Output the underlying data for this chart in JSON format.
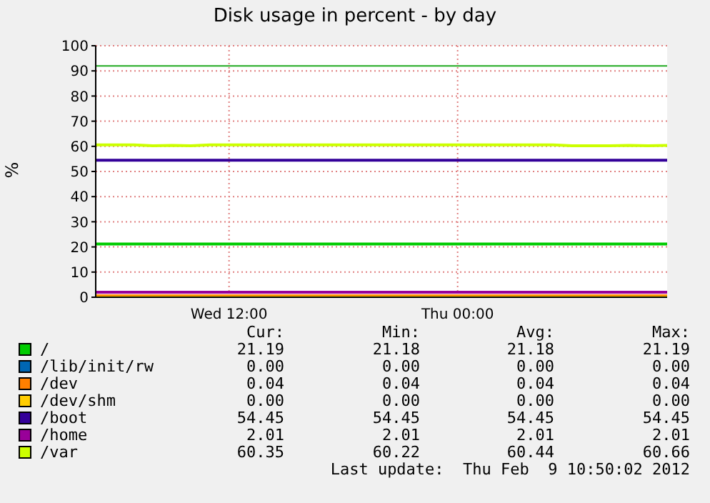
{
  "chart_data": {
    "type": "line",
    "title": "Disk usage in percent - by day",
    "ylabel": "%",
    "categories": [
      null,
      null,
      null,
      null,
      null,
      null,
      null,
      "Wed 12:00",
      null,
      null,
      null,
      null,
      null,
      null,
      null,
      null,
      null,
      null,
      null,
      "Thu 00:00",
      null,
      null,
      null,
      null,
      null,
      null,
      null,
      null,
      null,
      null,
      null
    ],
    "ylim": [
      0,
      100
    ],
    "yticks": [
      0,
      10,
      20,
      30,
      40,
      50,
      60,
      70,
      80,
      90,
      100
    ],
    "grid": true,
    "legend": "bottom",
    "ref_lines": [
      {
        "axis": "y",
        "value": 92,
        "color": "#22aa22"
      }
    ],
    "series": [
      {
        "name": "/",
        "color": "#00cc00",
        "values": [
          21.2,
          21.2,
          21.2,
          21.2,
          21.2,
          21.2,
          21.2,
          21.2,
          21.2,
          21.2,
          21.2,
          21.2,
          21.2,
          21.2,
          21.2,
          21.2,
          21.2,
          21.2,
          21.2,
          21.2,
          21.2,
          21.2,
          21.2,
          21.2,
          21.2,
          21.2,
          21.2,
          21.2,
          21.2,
          21.2,
          21.2
        ]
      },
      {
        "name": "/lib/init/rw",
        "color": "#0066b3",
        "values": [
          null,
          null,
          null,
          null,
          null,
          null,
          null,
          null,
          null,
          null,
          null,
          null,
          null,
          null,
          null,
          null,
          null,
          null,
          null,
          null,
          null,
          null,
          null,
          null,
          null,
          null,
          null,
          null,
          null,
          null,
          null
        ]
      },
      {
        "name": "/dev",
        "color": "#ff8000",
        "values": [
          0,
          0,
          0,
          0,
          0,
          0,
          0,
          0,
          0,
          0,
          0,
          0,
          0,
          0,
          0,
          0,
          0,
          0,
          0,
          0,
          0,
          0,
          0,
          0,
          0,
          0,
          0,
          0,
          0,
          0,
          0
        ]
      },
      {
        "name": "/dev/shm",
        "color": "#ffcc00",
        "values": [
          0,
          0,
          0,
          0,
          0,
          0,
          0,
          0,
          0,
          0,
          0,
          0,
          0,
          0,
          0,
          0,
          0,
          0,
          0,
          0,
          0,
          0,
          0,
          0,
          0,
          0,
          0,
          0,
          0,
          0,
          0
        ]
      },
      {
        "name": "/boot",
        "color": "#330099",
        "values": [
          54.5,
          54.5,
          54.5,
          54.5,
          54.5,
          54.5,
          54.5,
          54.5,
          54.5,
          54.5,
          54.5,
          54.5,
          54.5,
          54.5,
          54.5,
          54.5,
          54.5,
          54.5,
          54.5,
          54.5,
          54.5,
          54.5,
          54.5,
          54.5,
          54.5,
          54.5,
          54.5,
          54.5,
          54.5,
          54.5,
          54.5
        ]
      },
      {
        "name": "/home",
        "color": "#990099",
        "values": [
          2,
          2,
          2,
          2,
          2,
          2,
          2,
          2,
          2,
          2,
          2,
          2,
          2,
          2,
          2,
          2,
          2,
          2,
          2,
          2,
          2,
          2,
          2,
          2,
          2,
          2,
          2,
          2,
          2,
          2,
          2
        ]
      },
      {
        "name": "/var",
        "color": "#ccff00",
        "values": [
          60.6,
          60.6,
          60.6,
          60.2,
          60.4,
          60.2,
          60.6,
          60.6,
          60.6,
          60.6,
          60.6,
          60.6,
          60.6,
          60.6,
          60.6,
          60.6,
          60.6,
          60.6,
          60.6,
          60.6,
          60.6,
          60.6,
          60.6,
          60.6,
          60.6,
          60.2,
          60.2,
          60.2,
          60.4,
          60.2,
          60.4
        ]
      }
    ],
    "annotations": [
      "Cur:",
      "Min:",
      "Avg:",
      "Max:",
      "21.19",
      "21.18",
      "21.18",
      "21.19",
      "0.00",
      "0.00",
      "0.00",
      "0.00",
      "0.04",
      "0.04",
      "0.04",
      "0.04",
      "0.00",
      "0.00",
      "0.00",
      "0.00",
      "54.45",
      "54.45",
      "54.45",
      "54.45",
      "2.01",
      "2.01",
      "2.01",
      "2.01",
      "60.35",
      "60.22",
      "60.44",
      "60.66",
      "Last update:  Thu Feb  9 10:50:02 2012"
    ]
  }
}
